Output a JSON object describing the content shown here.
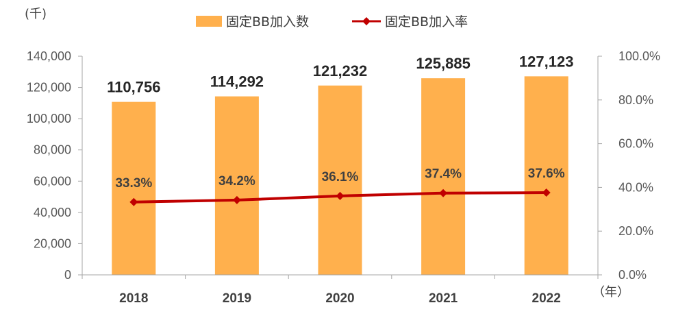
{
  "chart_data": {
    "type": "bar",
    "categories": [
      "2018",
      "2019",
      "2020",
      "2021",
      "2022"
    ],
    "series": [
      {
        "name": "固定BB加入数",
        "type": "bar",
        "axis": "left",
        "values": [
          110756,
          114292,
          121232,
          125885,
          127123
        ],
        "labels": [
          "110,756",
          "114,292",
          "121,232",
          "125,885",
          "127,123"
        ],
        "color": "#FFB04D"
      },
      {
        "name": "固定BB加入率",
        "type": "line",
        "axis": "right",
        "values": [
          33.3,
          34.2,
          36.1,
          37.4,
          37.6
        ],
        "labels": [
          "33.3%",
          "34.2%",
          "36.1%",
          "37.4%",
          "37.6%"
        ],
        "color": "#C00000"
      }
    ],
    "y_left": {
      "unit": "(千)",
      "range": [
        0,
        140000
      ],
      "ticks": [
        "0",
        "20,000",
        "40,000",
        "60,000",
        "80,000",
        "100,000",
        "120,000",
        "140,000"
      ]
    },
    "y_right": {
      "range": [
        0,
        100
      ],
      "ticks": [
        "0.0%",
        "20.0%",
        "40.0%",
        "60.0%",
        "80.0%",
        "100.0%"
      ]
    },
    "x_unit": "（年）",
    "legend_position": "top",
    "grid": false
  }
}
